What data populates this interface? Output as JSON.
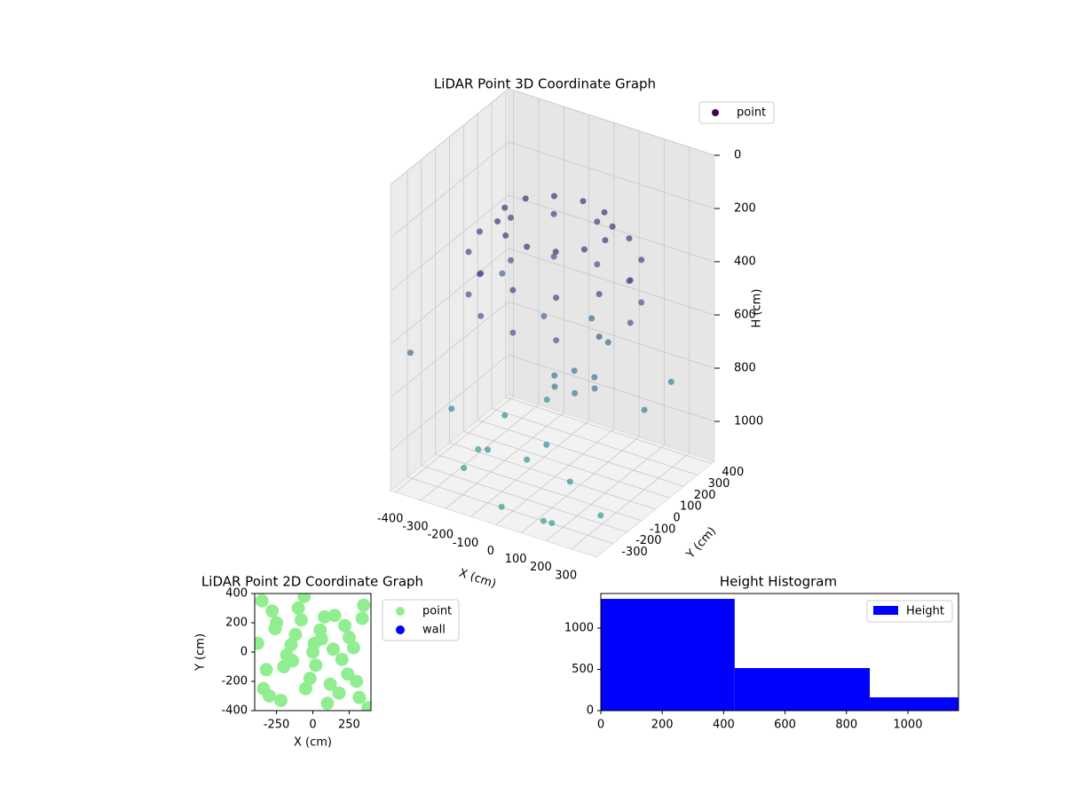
{
  "chart_data": [
    {
      "type": "scatter3d",
      "title": "LiDAR Point 3D Coordinate Graph",
      "xlabel": "X (cm)",
      "ylabel": "Y (cm)",
      "zlabel": "H (cm)",
      "xlim": [
        -420,
        400
      ],
      "ylim": [
        -420,
        420
      ],
      "zlim": [
        0,
        1150
      ],
      "z_inverted": true,
      "xticks": [
        -400,
        -300,
        -200,
        -100,
        0,
        100,
        200,
        300
      ],
      "yticks": [
        -300,
        -200,
        -100,
        0,
        100,
        200,
        300,
        400
      ],
      "zticks": [
        0,
        200,
        400,
        600,
        800,
        1000
      ],
      "colormap": "viridis",
      "grid": true,
      "legend": "upper right",
      "series": [
        {
          "name": "point",
          "color": "#440154",
          "x": [
            200,
            173,
            100,
            0,
            -100,
            -173,
            -200,
            -173,
            -100,
            0,
            100,
            173,
            300,
            260,
            150,
            0,
            -150,
            -260,
            -300,
            -260,
            -150,
            0,
            150,
            260,
            300,
            260,
            150,
            0,
            -150,
            -260,
            -300,
            -260,
            -150,
            0,
            150,
            260,
            130,
            90,
            10,
            -30,
            10,
            90,
            -380,
            -300,
            -200,
            -100,
            0,
            100,
            200,
            300,
            -350,
            -250,
            -150,
            -50,
            50,
            150,
            250,
            350,
            -200,
            0,
            200,
            -100
          ],
          "y": [
            0,
            100,
            173,
            200,
            173,
            100,
            0,
            -100,
            -173,
            -200,
            -173,
            -100,
            0,
            150,
            260,
            300,
            260,
            150,
            0,
            -150,
            -260,
            -300,
            -260,
            -150,
            0,
            150,
            260,
            300,
            260,
            150,
            0,
            -150,
            -260,
            -300,
            -260,
            -150,
            50,
            120,
            120,
            50,
            -20,
            -20,
            -350,
            -200,
            300,
            -300,
            -380,
            200,
            -250,
            100,
            250,
            -100,
            -380,
            350,
            -150,
            -350,
            380,
            -300,
            0,
            -200,
            -380,
            100
          ],
          "z": [
            200,
            200,
            200,
            200,
            200,
            200,
            200,
            200,
            200,
            200,
            200,
            200,
            320,
            320,
            320,
            320,
            320,
            320,
            320,
            320,
            320,
            320,
            320,
            320,
            480,
            480,
            480,
            480,
            480,
            480,
            480,
            480,
            480,
            480,
            480,
            480,
            800,
            800,
            800,
            800,
            800,
            800,
            650,
            900,
            1050,
            950,
            1100,
            700,
            1000,
            850,
            600,
            1080,
            1000,
            720,
            950,
            1120,
            880,
            1060,
            980,
            1000,
            1100,
            620
          ]
        }
      ]
    },
    {
      "type": "scatter",
      "title": "LiDAR Point 2D Coordinate Graph",
      "xlabel": "X (cm)",
      "ylabel": "Y (cm)",
      "xlim": [
        -400,
        400
      ],
      "ylim": [
        -400,
        400
      ],
      "xticks": [
        -250,
        0,
        250
      ],
      "yticks": [
        -400,
        -200,
        0,
        200,
        400
      ],
      "legend": "outside upper right",
      "series": [
        {
          "name": "point",
          "color": "#90ee90",
          "x": [
            -350,
            -300,
            -250,
            -200,
            -150,
            -100,
            -50,
            0,
            50,
            100,
            150,
            200,
            250,
            300,
            350,
            -320,
            -220,
            -120,
            -20,
            80,
            180,
            280,
            380,
            -380,
            -280,
            -180,
            -80,
            20,
            120,
            220,
            320,
            -340,
            -60,
            60,
            240,
            -260,
            140,
            340,
            -140,
            10
          ],
          "y": [
            350,
            -300,
            200,
            -100,
            50,
            300,
            -250,
            0,
            150,
            -350,
            250,
            -50,
            100,
            -200,
            320,
            -120,
            -330,
            120,
            -180,
            240,
            -280,
            30,
            -380,
            60,
            280,
            -20,
            220,
            -90,
            -220,
            180,
            -310,
            -250,
            380,
            90,
            -150,
            160,
            20,
            230,
            -60,
            60
          ]
        },
        {
          "name": "wall",
          "color": "#0000ff",
          "x": [],
          "y": []
        }
      ]
    },
    {
      "type": "histogram",
      "title": "Height Histogram",
      "bins": [
        0,
        436,
        876,
        1165
      ],
      "xlim": [
        0,
        1165
      ],
      "ylim": [
        0,
        1420
      ],
      "xticks": [
        0,
        200,
        400,
        600,
        800,
        1000
      ],
      "yticks": [
        0,
        500,
        1000
      ],
      "legend": "upper right",
      "series": [
        {
          "name": "Height",
          "color": "#0000ff",
          "values": [
            1355,
            516,
            161
          ]
        }
      ]
    }
  ]
}
